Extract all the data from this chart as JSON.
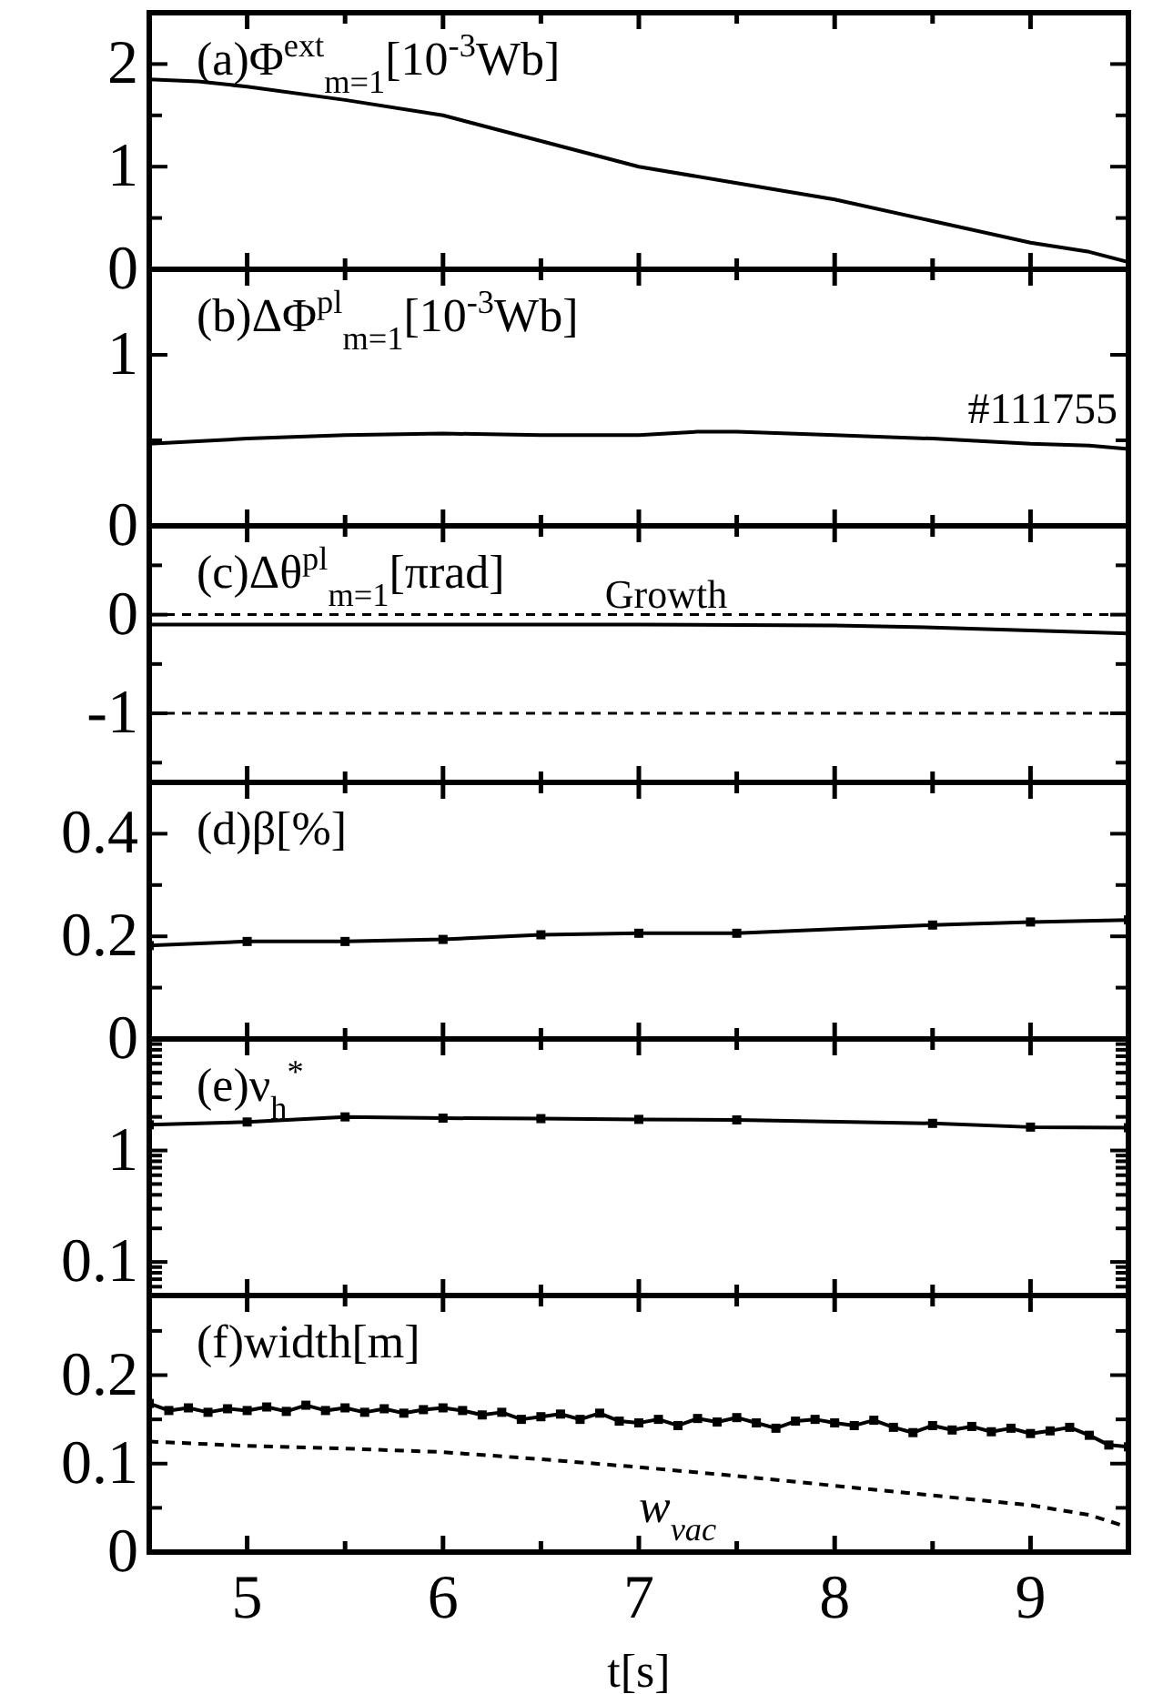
{
  "chart_data": [
    {
      "type": "line",
      "title": "(a)Φ$^{ext}$$_{m=1}$[10$^{-3}$Wb]",
      "xlim": [
        4.5,
        9.5
      ],
      "xticks": [
        {
          "value": 5,
          "label": null
        },
        {
          "value": 5.5,
          "label": null
        },
        {
          "value": 6,
          "label": null
        },
        {
          "value": 6.5,
          "label": null
        },
        {
          "value": 7,
          "label": null
        },
        {
          "value": 7.5,
          "label": null
        },
        {
          "value": 8,
          "label": null
        },
        {
          "value": 8.5,
          "label": null
        },
        {
          "value": 9,
          "label": null
        }
      ],
      "ylim": [
        0,
        2.5
      ],
      "yticks": [
        0,
        {
          "value": 0.5,
          "label": null
        },
        1,
        {
          "value": 1.5,
          "label": null
        },
        2
      ],
      "tick_labels": "y",
      "series": [
        {
          "color": "#000000",
          "x": [
            4.5,
            4.75,
            5,
            5.5,
            6,
            6.5,
            7,
            7.5,
            8,
            8.5,
            9,
            9.3,
            9.5
          ],
          "values": [
            1.85,
            1.83,
            1.78,
            1.65,
            1.5,
            1.25,
            1.0,
            0.84,
            0.68,
            0.47,
            0.26,
            0.17,
            0.07
          ]
        }
      ]
    },
    {
      "type": "line",
      "title": "(b)ΔΦ$^{pl}$$_{m=1}$[10$^{-3}$Wb]",
      "xlim": [
        4.5,
        9.5
      ],
      "xticks": [
        {
          "value": 5,
          "label": null
        },
        {
          "value": 5.5,
          "label": null
        },
        {
          "value": 6,
          "label": null
        },
        {
          "value": 6.5,
          "label": null
        },
        {
          "value": 7,
          "label": null
        },
        {
          "value": 7.5,
          "label": null
        },
        {
          "value": 8,
          "label": null
        },
        {
          "value": 8.5,
          "label": null
        },
        {
          "value": 9,
          "label": null
        }
      ],
      "ylim": [
        0,
        1.5
      ],
      "yticks": [
        0,
        {
          "value": 0.5,
          "label": null
        },
        1
      ],
      "tick_labels": "y",
      "annotations": [
        "#111755"
      ],
      "series": [
        {
          "color": "#000000",
          "x": [
            4.5,
            5,
            5.5,
            6,
            6.5,
            7,
            7.3,
            7.5,
            8,
            8.5,
            9,
            9.3,
            9.5
          ],
          "values": [
            0.48,
            0.51,
            0.53,
            0.54,
            0.53,
            0.53,
            0.55,
            0.55,
            0.53,
            0.51,
            0.48,
            0.47,
            0.45
          ]
        }
      ]
    },
    {
      "type": "line",
      "title": "(c)Δθ$^{pl}$$_{m=1}$[πrad]",
      "xlim": [
        4.5,
        9.5
      ],
      "xticks": [
        {
          "value": 5,
          "label": null
        },
        {
          "value": 5.5,
          "label": null
        },
        {
          "value": 6,
          "label": null
        },
        {
          "value": 6.5,
          "label": null
        },
        {
          "value": 7,
          "label": null
        },
        {
          "value": 7.5,
          "label": null
        },
        {
          "value": 8,
          "label": null
        },
        {
          "value": 8.5,
          "label": null
        },
        {
          "value": 9,
          "label": null
        }
      ],
      "ylim": [
        -1.7,
        0.9
      ],
      "yticks": [
        {
          "value": -1.5,
          "label": null
        },
        -1,
        {
          "value": -0.5,
          "label": null
        },
        0,
        {
          "value": 0.5,
          "label": null
        }
      ],
      "tick_labels": "y",
      "ref_lines": [
        {
          "axis": "y",
          "value": 0,
          "label": "Growth",
          "line_style": "dashed"
        },
        {
          "axis": "y",
          "value": -1,
          "line_style": "dashed"
        }
      ],
      "series": [
        {
          "color": "#000000",
          "x": [
            4.5,
            6,
            7,
            8,
            8.5,
            9,
            9.5
          ],
          "values": [
            -0.1,
            -0.1,
            -0.1,
            -0.11,
            -0.13,
            -0.16,
            -0.19
          ]
        }
      ]
    },
    {
      "type": "line",
      "title": "(d)β[%]",
      "xlim": [
        4.5,
        9.5
      ],
      "xticks": [
        {
          "value": 5,
          "label": null
        },
        {
          "value": 5.5,
          "label": null
        },
        {
          "value": 6,
          "label": null
        },
        {
          "value": 6.5,
          "label": null
        },
        {
          "value": 7,
          "label": null
        },
        {
          "value": 7.5,
          "label": null
        },
        {
          "value": 8,
          "label": null
        },
        {
          "value": 8.5,
          "label": null
        },
        {
          "value": 9,
          "label": null
        }
      ],
      "ylim": [
        0,
        0.5
      ],
      "yticks": [
        0,
        {
          "value": 0.1,
          "label": null
        },
        0.2,
        {
          "value": 0.3,
          "label": null
        },
        0.4
      ],
      "tick_labels": "y",
      "marker": "square",
      "series": [
        {
          "color": "#000000",
          "x": [
            4.5,
            5,
            5.5,
            6,
            6.5,
            7,
            7.5,
            8.5,
            9,
            9.5
          ],
          "values": [
            0.182,
            0.19,
            0.19,
            0.194,
            0.203,
            0.206,
            0.206,
            0.222,
            0.228,
            0.232
          ]
        }
      ]
    },
    {
      "type": "line",
      "title": "(e)ν$_{h}$$^{*}$",
      "xlim": [
        4.5,
        9.5
      ],
      "xticks": [
        {
          "value": 5,
          "label": null
        },
        {
          "value": 5.5,
          "label": null
        },
        {
          "value": 6,
          "label": null
        },
        {
          "value": 6.5,
          "label": null
        },
        {
          "value": 7,
          "label": null
        },
        {
          "value": 7.5,
          "label": null
        },
        {
          "value": 8,
          "label": null
        },
        {
          "value": 8.5,
          "label": null
        },
        {
          "value": 9,
          "label": null
        }
      ],
      "ylim": [
        0.05,
        10
      ],
      "log": "y",
      "yticks": [
        {
          "value": 0.06,
          "label": null
        },
        {
          "value": 0.07,
          "label": null
        },
        {
          "value": 0.08,
          "label": null
        },
        {
          "value": 0.09,
          "label": null
        },
        0.1,
        {
          "value": 0.2,
          "label": null
        },
        {
          "value": 0.3,
          "label": null
        },
        {
          "value": 0.4,
          "label": null
        },
        {
          "value": 0.5,
          "label": null
        },
        {
          "value": 0.6,
          "label": null
        },
        {
          "value": 0.7,
          "label": null
        },
        {
          "value": 0.8,
          "label": null
        },
        {
          "value": 0.9,
          "label": null
        },
        1,
        {
          "value": 2,
          "label": null
        },
        {
          "value": 3,
          "label": null
        },
        {
          "value": 4,
          "label": null
        },
        {
          "value": 5,
          "label": null
        },
        {
          "value": 6,
          "label": null
        },
        {
          "value": 7,
          "label": null
        },
        {
          "value": 8,
          "label": null
        },
        {
          "value": 9,
          "label": null
        }
      ],
      "tick_labels": "y",
      "marker": "square",
      "series": [
        {
          "color": "#000000",
          "x": [
            4.5,
            5,
            5.5,
            6,
            6.5,
            7,
            7.5,
            8.5,
            9,
            9.5
          ],
          "values": [
            1.7,
            1.8,
            2.0,
            1.95,
            1.93,
            1.9,
            1.88,
            1.75,
            1.62,
            1.6
          ]
        }
      ]
    },
    {
      "type": "line",
      "title": "(f)width[m]",
      "xlabel": "t[s]",
      "xlim": [
        4.5,
        9.5
      ],
      "xticks": [
        5,
        {
          "value": 5.5,
          "label": null
        },
        6,
        {
          "value": 6.5,
          "label": null
        },
        7,
        {
          "value": 7.5,
          "label": null
        },
        8,
        {
          "value": 8.5,
          "label": null
        },
        9
      ],
      "ylim": [
        0,
        0.29
      ],
      "yticks": [
        0,
        {
          "value": 0.05,
          "label": null
        },
        0.1,
        {
          "value": 0.15,
          "label": null
        },
        0.2,
        {
          "value": 0.25,
          "label": null
        }
      ],
      "series": [
        {
          "color": "#000000",
          "marker": "square",
          "x": [
            4.5,
            4.6,
            4.7,
            4.8,
            4.9,
            5.0,
            5.1,
            5.2,
            5.3,
            5.4,
            5.5,
            5.6,
            5.7,
            5.8,
            5.9,
            6.0,
            6.1,
            6.2,
            6.3,
            6.4,
            6.5,
            6.6,
            6.7,
            6.8,
            6.9,
            7.0,
            7.1,
            7.2,
            7.3,
            7.4,
            7.5,
            7.6,
            7.7,
            7.8,
            7.9,
            8.0,
            8.1,
            8.2,
            8.3,
            8.4,
            8.5,
            8.6,
            8.7,
            8.8,
            8.9,
            9.0,
            9.1,
            9.2,
            9.3,
            9.4,
            9.5
          ],
          "values": [
            0.168,
            0.16,
            0.163,
            0.158,
            0.162,
            0.16,
            0.164,
            0.159,
            0.166,
            0.16,
            0.163,
            0.158,
            0.162,
            0.157,
            0.161,
            0.163,
            0.16,
            0.155,
            0.158,
            0.15,
            0.153,
            0.156,
            0.15,
            0.157,
            0.148,
            0.146,
            0.15,
            0.143,
            0.151,
            0.147,
            0.152,
            0.146,
            0.14,
            0.148,
            0.15,
            0.146,
            0.143,
            0.149,
            0.141,
            0.135,
            0.143,
            0.138,
            0.142,
            0.136,
            0.14,
            0.134,
            0.137,
            0.141,
            0.132,
            0.121,
            0.119
          ]
        },
        {
          "name": "w$_{vac}$",
          "color": "#000000",
          "marker": "none",
          "line_style": "dashed",
          "x": [
            4.5,
            5,
            5.5,
            6,
            6.5,
            7,
            7.5,
            8,
            8.5,
            9,
            9.3,
            9.5
          ],
          "values": [
            0.125,
            0.12,
            0.117,
            0.113,
            0.105,
            0.096,
            0.086,
            0.075,
            0.064,
            0.053,
            0.042,
            0.028
          ]
        }
      ]
    }
  ]
}
